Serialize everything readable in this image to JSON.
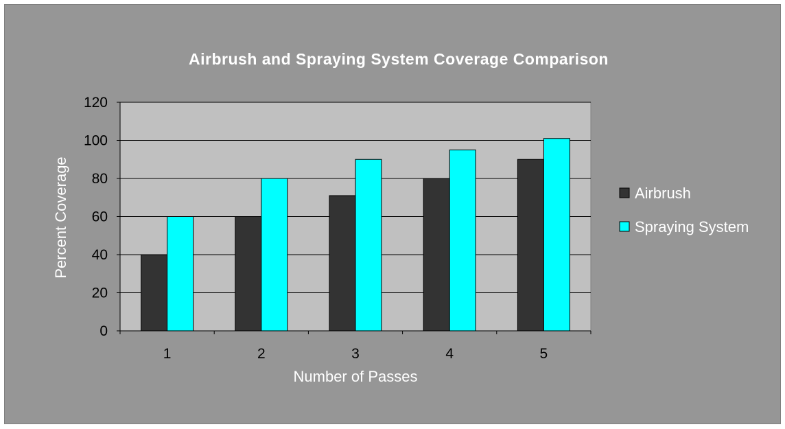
{
  "chart_data": {
    "type": "bar",
    "title": "Airbrush and Spraying System Coverage Comparison",
    "xlabel": "Number of Passes",
    "ylabel": "Percent Coverage",
    "categories": [
      "1",
      "2",
      "3",
      "4",
      "5"
    ],
    "series": [
      {
        "name": "Airbrush",
        "values": [
          40,
          60,
          71,
          80,
          90
        ],
        "color": "#333333"
      },
      {
        "name": "Spraying System",
        "values": [
          60,
          80,
          90,
          95,
          101
        ],
        "color": "#00ffff"
      }
    ],
    "ylim": [
      0,
      120
    ],
    "yticks": [
      "0",
      "20",
      "40",
      "60",
      "80",
      "100",
      "120"
    ],
    "grid": true,
    "legend_position": "right",
    "colors": {
      "background": "#969696",
      "plot_area": "#c0c0c0",
      "gridline": "#000000"
    }
  }
}
